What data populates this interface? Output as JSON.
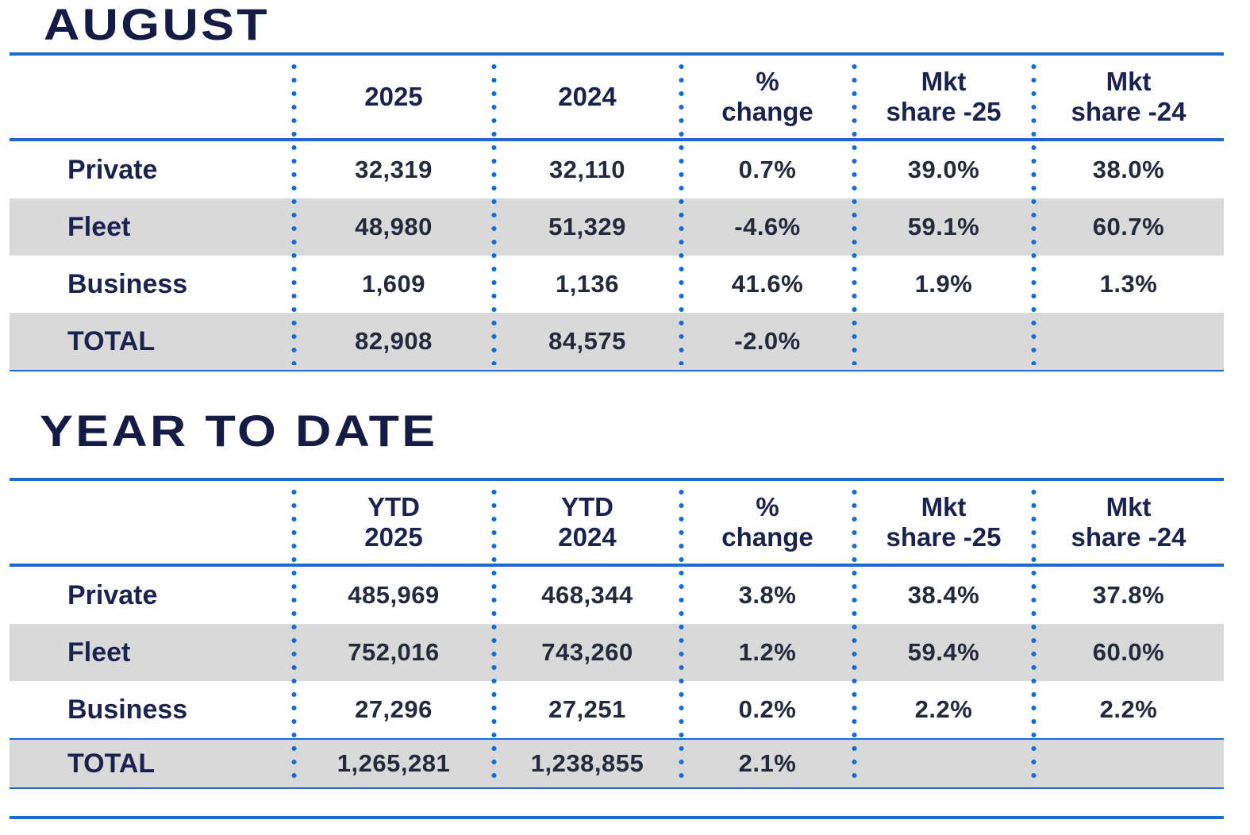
{
  "colors": {
    "navy": "#1a2350",
    "navy_dark": "#141b44",
    "blue": "#1a6bd0",
    "row_gray": "#d9d9d9",
    "value_text": "#232a3c"
  },
  "chart_data": [
    {
      "type": "table",
      "title": "AUGUST",
      "columns": [
        "",
        "2025",
        "2024",
        "%\nchange",
        "Mkt\nshare -25",
        "Mkt\nshare -24"
      ],
      "rows": [
        [
          "Private",
          "32,319",
          "32,110",
          "0.7%",
          "39.0%",
          "38.0%"
        ],
        [
          "Fleet",
          "48,980",
          "51,329",
          "-4.6%",
          "59.1%",
          "60.7%"
        ],
        [
          "Business",
          "1,609",
          "1,136",
          "41.6%",
          "1.9%",
          "1.3%"
        ],
        [
          "TOTAL",
          "82,908",
          "84,575",
          "-2.0%",
          "",
          ""
        ]
      ],
      "layout": {
        "shaded_rows": [
          1,
          3
        ],
        "legend": "none",
        "grid": "dotted vertical separators"
      }
    },
    {
      "type": "table",
      "title": "YEAR TO DATE",
      "columns": [
        "",
        "YTD\n2025",
        "YTD\n2024",
        "%\nchange",
        "Mkt\nshare -25",
        "Mkt\nshare -24"
      ],
      "rows": [
        [
          "Private",
          "485,969",
          "468,344",
          "3.8%",
          "38.4%",
          "37.8%"
        ],
        [
          "Fleet",
          "752,016",
          "743,260",
          "1.2%",
          "59.4%",
          "60.0%"
        ],
        [
          "Business",
          "27,296",
          "27,251",
          "0.2%",
          "2.2%",
          "2.2%"
        ],
        [
          "TOTAL",
          "1,265,281",
          "1,238,855",
          "2.1%",
          "",
          ""
        ]
      ],
      "layout": {
        "shaded_rows": [
          1,
          3
        ],
        "legend": "none",
        "grid": "dotted vertical separators"
      }
    }
  ]
}
